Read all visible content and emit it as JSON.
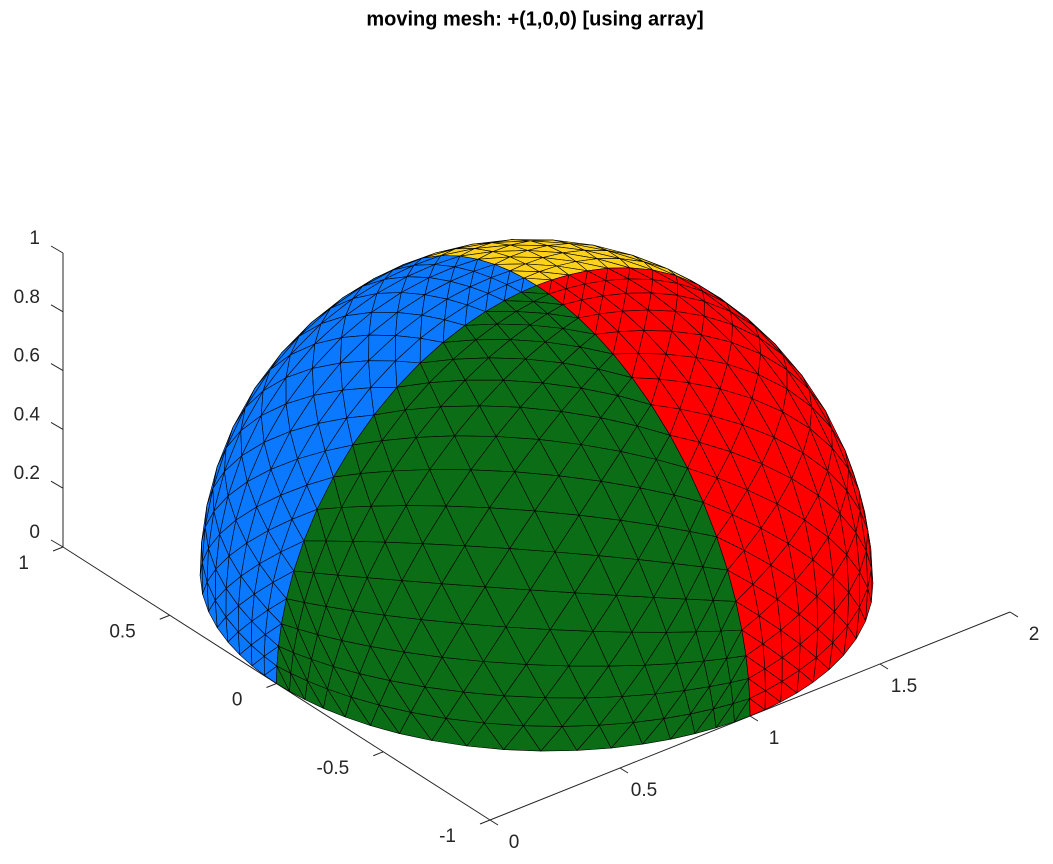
{
  "chart_data": {
    "type": "surface3d",
    "title": "moving mesh: +(1,0,0) [using array]",
    "xlim": [
      0,
      2
    ],
    "xticks": [
      0,
      0.5,
      1,
      1.5,
      2
    ],
    "ylim": [
      -1,
      1
    ],
    "yticks": [
      -1,
      -0.5,
      0,
      0.5,
      1
    ],
    "zlim": [
      0,
      1
    ],
    "zticks": [
      0,
      0.2,
      0.4,
      0.6,
      0.8,
      1
    ],
    "sphere": {
      "center": [
        1,
        0,
        0
      ],
      "radius": 1
    },
    "colors": [
      "#0b6e17",
      "#ff0000",
      "#0a78ff",
      "#ffd21a"
    ],
    "edge_color": "#000000"
  }
}
